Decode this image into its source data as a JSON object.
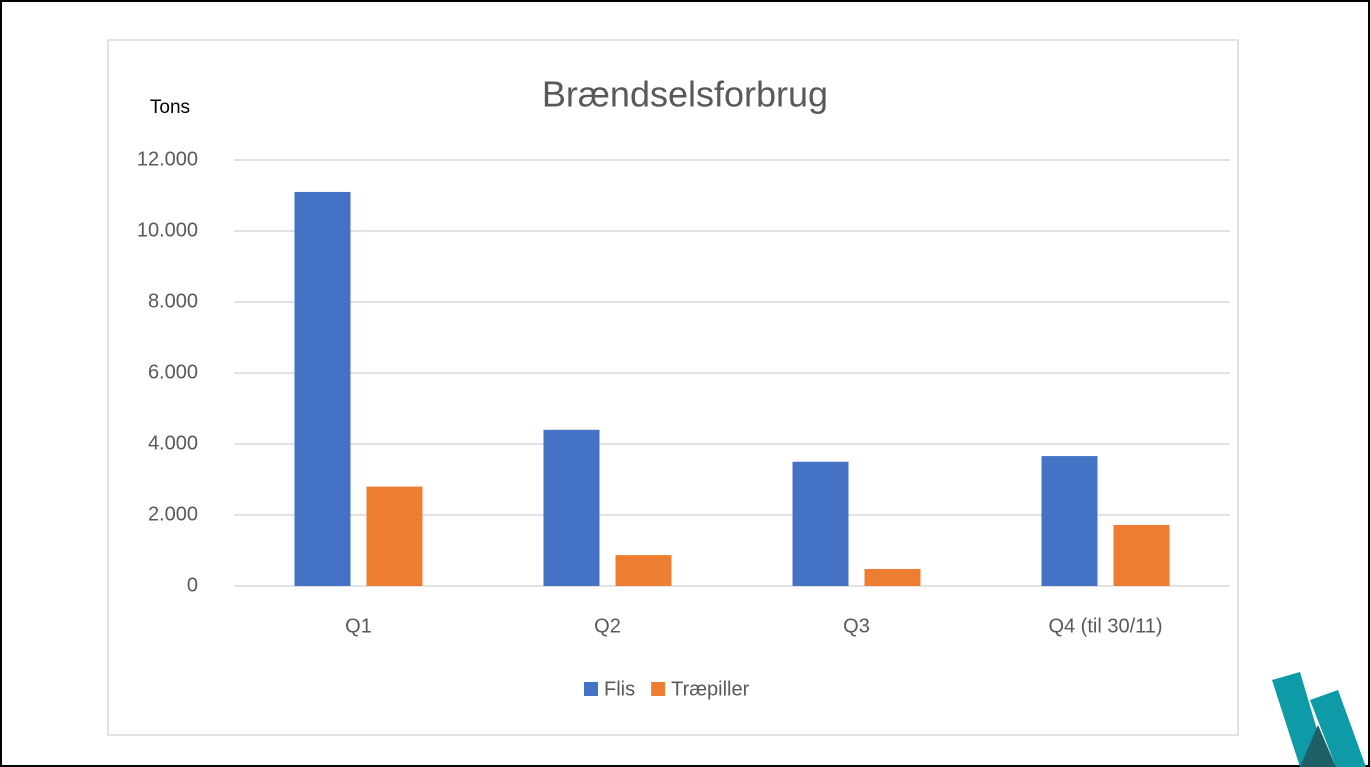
{
  "chart_data": {
    "type": "bar",
    "title": "Brændselsforbrug",
    "y_axis_label": "Tons",
    "categories": [
      "Q1",
      "Q2",
      "Q3",
      "Q4 (til 30/11)"
    ],
    "series": [
      {
        "name": "Flis",
        "color": "#4472c4",
        "values": [
          11100,
          4400,
          3500,
          3660
        ]
      },
      {
        "name": "Træpiller",
        "color": "#ed7d31",
        "values": [
          2800,
          870,
          480,
          1720
        ]
      }
    ],
    "ylim": [
      0,
      12000
    ],
    "yticks": [
      0,
      {
        "value": 2000,
        "label": "2.000"
      },
      {
        "value": 4000,
        "label": "4.000"
      },
      {
        "value": 6000,
        "label": "6.000"
      },
      {
        "value": 8000,
        "label": "8.000"
      },
      {
        "value": 10000,
        "label": "10.000"
      },
      {
        "value": 12000,
        "label": "12.000"
      }
    ],
    "grid": true,
    "legend": "bottom"
  }
}
